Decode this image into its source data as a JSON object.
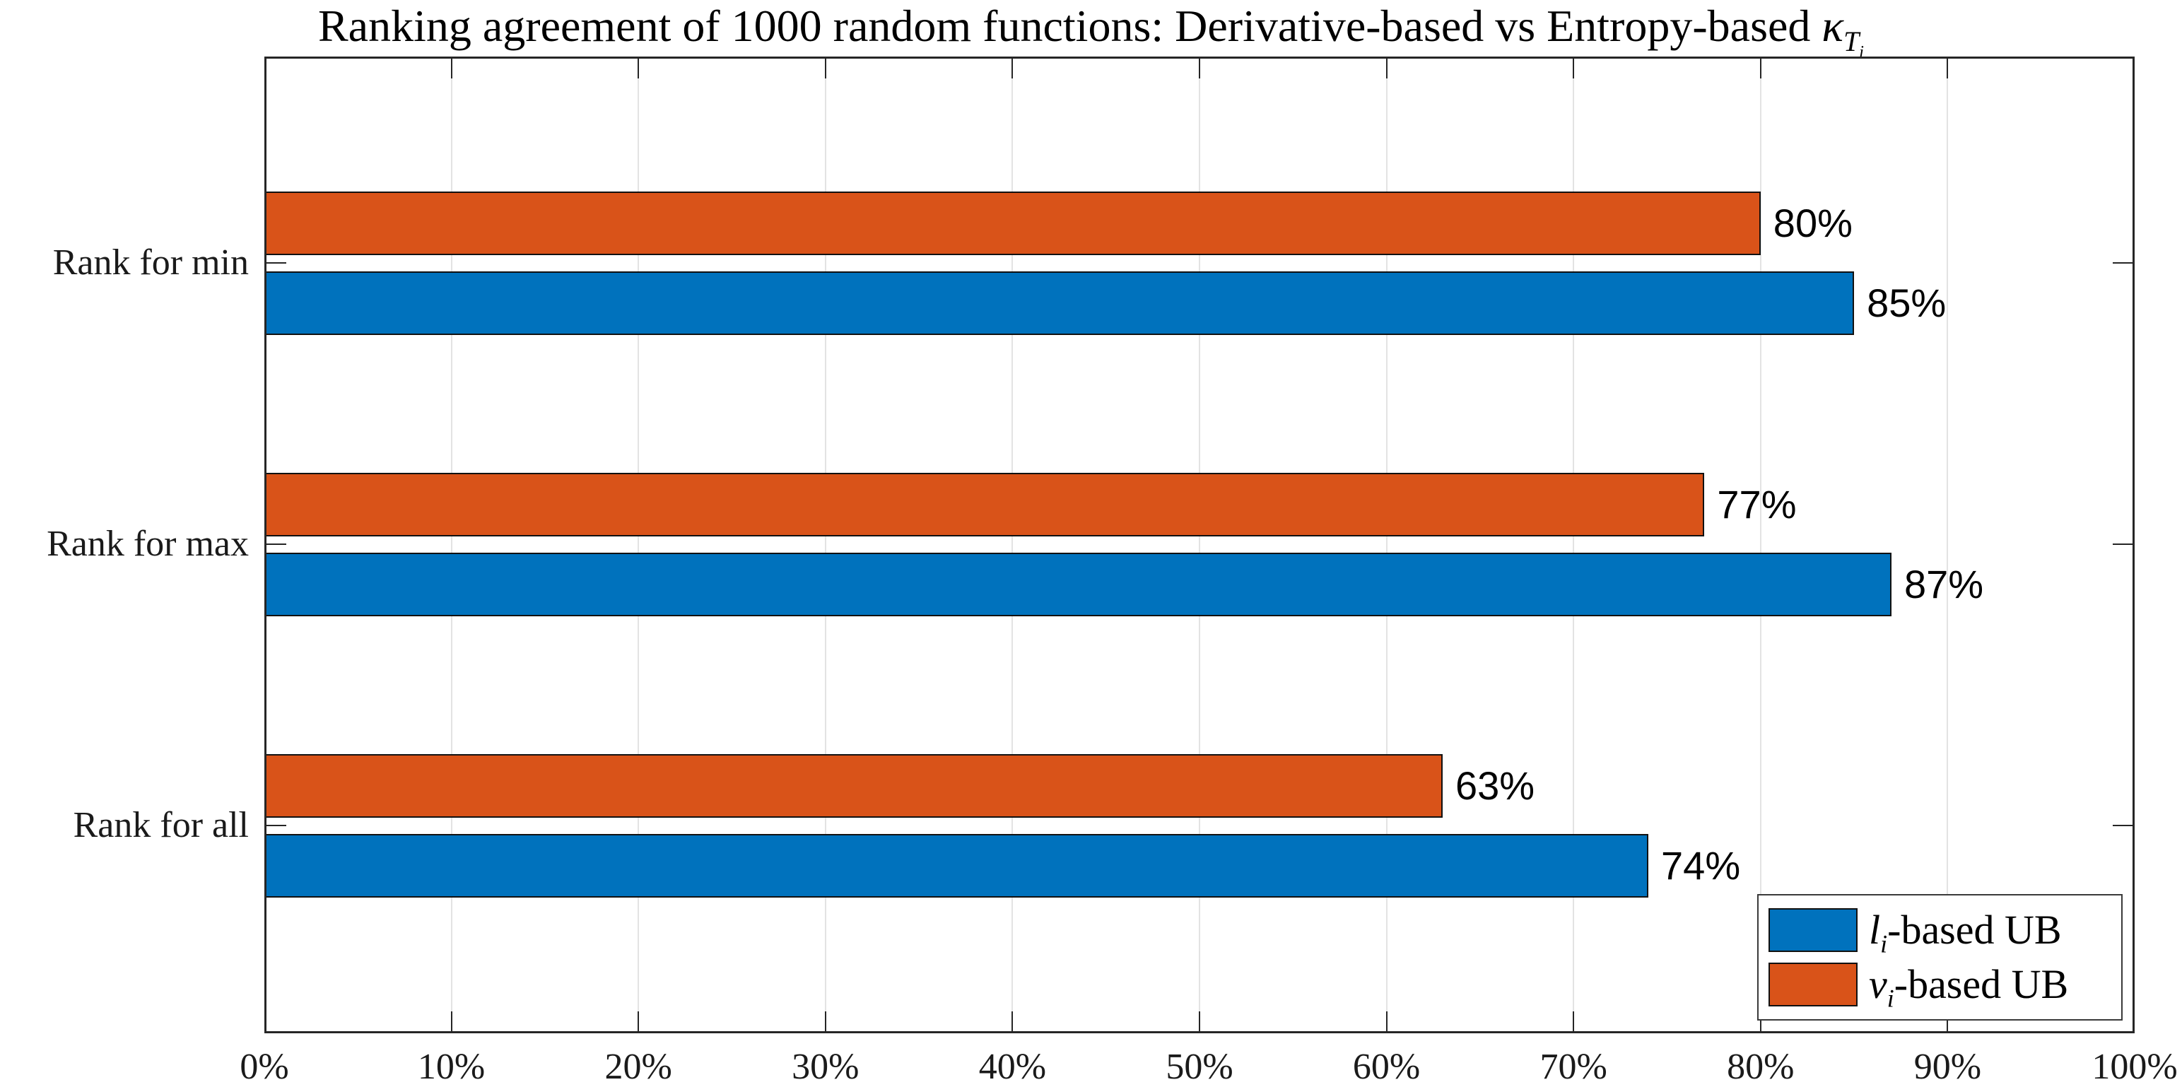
{
  "title": {
    "text": "Ranking agreement of 1000 random functions: Derivative-based vs Entropy-based ",
    "kappa": "κ",
    "kappa_sub": "T",
    "kappa_subsub": "i"
  },
  "chart_data": {
    "type": "bar",
    "orientation": "horizontal",
    "title": "Ranking agreement of 1000 random functions: Derivative-based vs Entropy-based κ_{T_i}",
    "categories": [
      "Rank for min",
      "Rank for max",
      "Rank for all"
    ],
    "series": [
      {
        "name": "l_i-based UB",
        "symbol": "l",
        "symbol_sub": "i",
        "label_rest": "-based UB",
        "color": "#0072BD",
        "position_in_group": "bottom",
        "values": [
          85,
          87,
          74
        ]
      },
      {
        "name": "ν_i-based UB",
        "symbol": "ν",
        "symbol_sub": "i",
        "label_rest": "-based UB",
        "color": "#D95319",
        "position_in_group": "top",
        "values": [
          80,
          77,
          63
        ]
      }
    ],
    "value_label_suffix": "%",
    "xlim": [
      0,
      100
    ],
    "x_tick_labels": [
      "0%",
      "10%",
      "20%",
      "30%",
      "40%",
      "50%",
      "60%",
      "70%",
      "80%",
      "90%",
      "100%"
    ],
    "grid": "vertical",
    "legend_position": "bottom-right-inside"
  },
  "colors": {
    "background": "#ffffff",
    "axis_box": "#262626",
    "gridline": "#e3e3e3",
    "bar_edge": "#111111",
    "text": "#1a1a1a"
  }
}
